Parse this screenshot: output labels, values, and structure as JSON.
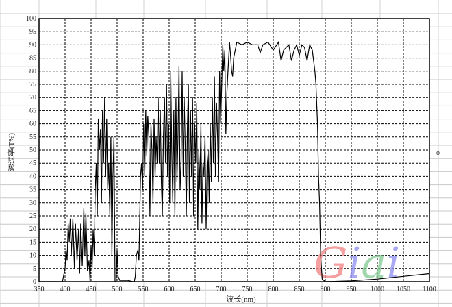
{
  "chart_data": {
    "type": "line",
    "title": "",
    "xlabel": "波长(nm)",
    "ylabel": "透过率(T%)",
    "xlim": [
      350,
      1100
    ],
    "ylim": [
      0,
      100
    ],
    "x_ticks": [
      "350",
      "400",
      "450",
      "500",
      "550",
      "600",
      "650",
      "700",
      "750",
      "800",
      "850",
      "900",
      "950",
      "1000",
      "1050",
      "1100"
    ],
    "y_ticks": [
      "0",
      "5",
      "10",
      "15",
      "20",
      "25",
      "30",
      "35",
      "40",
      "45",
      "50",
      "55",
      "60",
      "65",
      "70",
      "75",
      "80",
      "85",
      "90",
      "95",
      "100"
    ],
    "grid": true,
    "line_color": "#000000",
    "series": [
      {
        "points": [
          [
            350,
            0
          ],
          [
            395,
            0
          ],
          [
            400,
            5
          ],
          [
            402,
            12
          ],
          [
            404,
            8
          ],
          [
            406,
            22
          ],
          [
            408,
            15
          ],
          [
            410,
            24
          ],
          [
            412,
            10
          ],
          [
            415,
            24
          ],
          [
            418,
            5
          ],
          [
            420,
            22
          ],
          [
            423,
            8
          ],
          [
            426,
            20
          ],
          [
            428,
            3
          ],
          [
            430,
            22
          ],
          [
            433,
            6
          ],
          [
            436,
            28
          ],
          [
            438,
            10
          ],
          [
            440,
            26
          ],
          [
            443,
            4
          ],
          [
            446,
            8
          ],
          [
            448,
            0
          ],
          [
            450,
            14
          ],
          [
            452,
            5
          ],
          [
            454,
            20
          ],
          [
            456,
            10
          ],
          [
            458,
            35
          ],
          [
            460,
            45
          ],
          [
            462,
            25
          ],
          [
            464,
            62
          ],
          [
            466,
            50
          ],
          [
            468,
            58
          ],
          [
            470,
            30
          ],
          [
            472,
            65
          ],
          [
            474,
            45
          ],
          [
            476,
            70
          ],
          [
            478,
            40
          ],
          [
            480,
            62
          ],
          [
            482,
            35
          ],
          [
            484,
            45
          ],
          [
            486,
            25
          ],
          [
            488,
            55
          ],
          [
            490,
            10
          ],
          [
            492,
            40
          ],
          [
            494,
            55
          ],
          [
            496,
            0
          ],
          [
            498,
            0
          ],
          [
            500,
            12
          ],
          [
            502,
            2
          ],
          [
            505,
            0.5
          ],
          [
            520,
            0.5
          ],
          [
            530,
            0
          ],
          [
            533,
            0
          ],
          [
            535,
            2
          ],
          [
            537,
            10
          ],
          [
            540,
            12
          ],
          [
            542,
            8
          ],
          [
            545,
            40
          ],
          [
            547,
            45
          ],
          [
            549,
            35
          ],
          [
            551,
            60
          ],
          [
            553,
            40
          ],
          [
            555,
            65
          ],
          [
            557,
            48
          ],
          [
            559,
            63
          ],
          [
            561,
            55
          ],
          [
            563,
            25
          ],
          [
            565,
            60
          ],
          [
            567,
            50
          ],
          [
            569,
            30
          ],
          [
            571,
            62
          ],
          [
            573,
            40
          ],
          [
            575,
            55
          ],
          [
            577,
            45
          ],
          [
            579,
            70
          ],
          [
            581,
            45
          ],
          [
            583,
            65
          ],
          [
            585,
            38
          ],
          [
            587,
            25
          ],
          [
            589,
            55
          ],
          [
            591,
            70
          ],
          [
            593,
            45
          ],
          [
            595,
            75
          ],
          [
            597,
            40
          ],
          [
            599,
            60
          ],
          [
            601,
            30
          ],
          [
            603,
            80
          ],
          [
            605,
            50
          ],
          [
            607,
            30
          ],
          [
            609,
            65
          ],
          [
            611,
            25
          ],
          [
            613,
            70
          ],
          [
            615,
            38
          ],
          [
            617,
            55
          ],
          [
            619,
            82
          ],
          [
            621,
            35
          ],
          [
            623,
            45
          ],
          [
            625,
            80
          ],
          [
            627,
            40
          ],
          [
            629,
            70
          ],
          [
            631,
            50
          ],
          [
            633,
            25
          ],
          [
            635,
            58
          ],
          [
            637,
            75
          ],
          [
            639,
            30
          ],
          [
            641,
            65
          ],
          [
            643,
            40
          ],
          [
            645,
            70
          ],
          [
            647,
            25
          ],
          [
            649,
            60
          ],
          [
            651,
            45
          ],
          [
            653,
            68
          ],
          [
            655,
            20
          ],
          [
            657,
            50
          ],
          [
            659,
            35
          ],
          [
            661,
            60
          ],
          [
            663,
            22
          ],
          [
            665,
            45
          ],
          [
            667,
            40
          ],
          [
            669,
            55
          ],
          [
            671,
            20
          ],
          [
            673,
            45
          ],
          [
            675,
            50
          ],
          [
            677,
            30
          ],
          [
            679,
            60
          ],
          [
            681,
            38
          ],
          [
            683,
            70
          ],
          [
            685,
            45
          ],
          [
            687,
            78
          ],
          [
            689,
            40
          ],
          [
            691,
            68
          ],
          [
            693,
            55
          ],
          [
            695,
            38
          ],
          [
            697,
            80
          ],
          [
            699,
            60
          ],
          [
            701,
            75
          ],
          [
            703,
            90
          ],
          [
            705,
            80
          ],
          [
            707,
            88
          ],
          [
            709,
            56
          ],
          [
            711,
            72
          ],
          [
            713,
            80
          ],
          [
            716,
            91
          ],
          [
            718,
            86
          ],
          [
            720,
            80
          ],
          [
            722,
            78
          ],
          [
            724,
            85
          ],
          [
            727,
            88
          ],
          [
            730,
            91
          ],
          [
            740,
            90
          ],
          [
            750,
            91
          ],
          [
            760,
            90
          ],
          [
            770,
            90
          ],
          [
            775,
            87
          ],
          [
            780,
            90
          ],
          [
            790,
            91
          ],
          [
            800,
            88
          ],
          [
            810,
            91
          ],
          [
            815,
            84
          ],
          [
            820,
            88
          ],
          [
            830,
            90
          ],
          [
            835,
            84
          ],
          [
            840,
            88
          ],
          [
            845,
            90
          ],
          [
            850,
            86
          ],
          [
            855,
            90
          ],
          [
            860,
            89
          ],
          [
            865,
            84
          ],
          [
            870,
            90
          ],
          [
            875,
            88
          ],
          [
            880,
            80
          ],
          [
            882,
            75
          ],
          [
            885,
            60
          ],
          [
            887,
            40
          ],
          [
            889,
            30
          ],
          [
            891,
            10
          ],
          [
            894,
            1
          ],
          [
            900,
            0
          ],
          [
            950,
            0.3
          ],
          [
            1000,
            1
          ],
          [
            1050,
            2
          ],
          [
            1100,
            3
          ]
        ]
      }
    ]
  },
  "watermark": "Giai",
  "right_marker": "o"
}
